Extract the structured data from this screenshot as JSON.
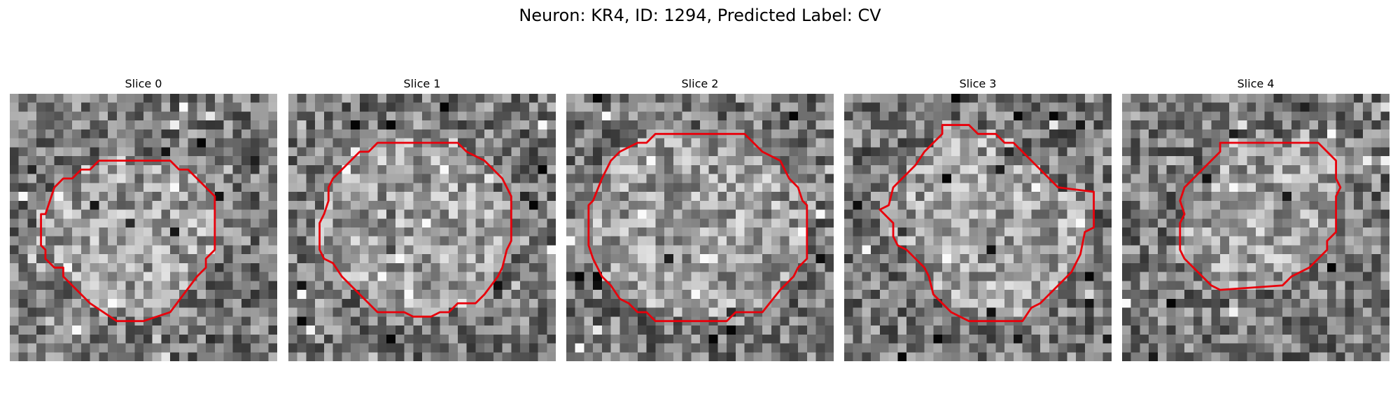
{
  "figure": {
    "suptitle": "Neuron: KR4, ID: 1294, Predicted Label: CV",
    "grid_cells": 30,
    "contour_color": "#e8000b",
    "colormap": "gray"
  },
  "panels": [
    {
      "title": "Slice 0",
      "contour": [
        [
          10,
          7.5
        ],
        [
          18,
          7.5
        ],
        [
          19,
          8.5
        ],
        [
          20,
          8.5
        ],
        [
          23,
          11.5
        ],
        [
          23,
          17.5
        ],
        [
          22,
          18.5
        ],
        [
          22,
          19.5
        ],
        [
          21,
          20.5
        ],
        [
          18,
          24.5
        ],
        [
          15,
          25.5
        ],
        [
          12,
          25.5
        ],
        [
          9,
          23.5
        ],
        [
          7,
          21.5
        ],
        [
          6,
          20.5
        ],
        [
          6,
          19.5
        ],
        [
          5,
          19.5
        ],
        [
          4,
          18.5
        ],
        [
          4,
          17.5
        ],
        [
          3.5,
          17
        ],
        [
          3.5,
          13.5
        ],
        [
          4,
          13.5
        ],
        [
          4.5,
          12
        ],
        [
          5,
          10.5
        ],
        [
          6,
          9.5
        ],
        [
          7,
          9.5
        ],
        [
          8,
          8.5
        ],
        [
          9,
          8.5
        ]
      ]
    },
    {
      "title": "Slice 1",
      "contour": [
        [
          10,
          5.5
        ],
        [
          19,
          5.5
        ],
        [
          20,
          6.5
        ],
        [
          22,
          7.5
        ],
        [
          23,
          8.5
        ],
        [
          24,
          9.5
        ],
        [
          25,
          11.5
        ],
        [
          25,
          16.5
        ],
        [
          24.5,
          17.5
        ],
        [
          24,
          19.5
        ],
        [
          23.5,
          20.5
        ],
        [
          22,
          22.5
        ],
        [
          21,
          23.5
        ],
        [
          19,
          23.5
        ],
        [
          18,
          24.5
        ],
        [
          17,
          24.5
        ],
        [
          16,
          25
        ],
        [
          14,
          25
        ],
        [
          13,
          24.5
        ],
        [
          10,
          24.5
        ],
        [
          9,
          23.5
        ],
        [
          8,
          22.5
        ],
        [
          7,
          21.5
        ],
        [
          6,
          20.5
        ],
        [
          5,
          19
        ],
        [
          4,
          18.5
        ],
        [
          3.5,
          17.5
        ],
        [
          3.5,
          14.5
        ],
        [
          4,
          13.5
        ],
        [
          4.5,
          12
        ],
        [
          4.5,
          10.5
        ],
        [
          5,
          9.5
        ],
        [
          6,
          8.5
        ],
        [
          7,
          7.5
        ],
        [
          8,
          6.5
        ],
        [
          9,
          6.5
        ]
      ]
    },
    {
      "title": "Slice 2",
      "contour": [
        [
          10,
          4.5
        ],
        [
          20,
          4.5
        ],
        [
          21,
          5.5
        ],
        [
          22,
          6.5
        ],
        [
          24,
          7.5
        ],
        [
          24.5,
          8.5
        ],
        [
          25,
          9.5
        ],
        [
          26,
          10.5
        ],
        [
          26.5,
          12
        ],
        [
          27,
          12.5
        ],
        [
          27,
          18.5
        ],
        [
          26,
          19.5
        ],
        [
          25.5,
          20.5
        ],
        [
          24,
          22
        ],
        [
          22,
          24.5
        ],
        [
          19,
          24.5
        ],
        [
          18,
          25.5
        ],
        [
          10,
          25.5
        ],
        [
          9,
          24.5
        ],
        [
          8,
          24.5
        ],
        [
          7,
          23.5
        ],
        [
          6,
          23
        ],
        [
          5,
          21.5
        ],
        [
          4,
          20.5
        ],
        [
          3.5,
          19.5
        ],
        [
          3,
          18.5
        ],
        [
          2.5,
          17
        ],
        [
          2.5,
          12.5
        ],
        [
          3,
          12
        ],
        [
          4,
          9.5
        ],
        [
          4.5,
          8.5
        ],
        [
          5,
          7.5
        ],
        [
          6,
          6.5
        ],
        [
          8,
          5.5
        ],
        [
          9,
          5.5
        ]
      ]
    },
    {
      "title": "Slice 3",
      "contour": [
        [
          11,
          3.5
        ],
        [
          14,
          3.5
        ],
        [
          15,
          4.5
        ],
        [
          17,
          4.5
        ],
        [
          18,
          5.5
        ],
        [
          19,
          5.5
        ],
        [
          20,
          6.5
        ],
        [
          21,
          7.5
        ],
        [
          22,
          8.5
        ],
        [
          23,
          9.5
        ],
        [
          24,
          10.5
        ],
        [
          28,
          11
        ],
        [
          28,
          15
        ],
        [
          27,
          15.5
        ],
        [
          26.5,
          18
        ],
        [
          25.5,
          20
        ],
        [
          24,
          21.5
        ],
        [
          22,
          23.5
        ],
        [
          21,
          24
        ],
        [
          20,
          25.5
        ],
        [
          14,
          25.5
        ],
        [
          12,
          24.5
        ],
        [
          11,
          23.5
        ],
        [
          10,
          22.5
        ],
        [
          9.5,
          20.5
        ],
        [
          9,
          19.5
        ],
        [
          8.5,
          19
        ],
        [
          8,
          18.5
        ],
        [
          7,
          17.5
        ],
        [
          6,
          17
        ],
        [
          5.5,
          16
        ],
        [
          5.5,
          14.5
        ],
        [
          4,
          13
        ],
        [
          5,
          12.5
        ],
        [
          5.5,
          10.5
        ],
        [
          7,
          9
        ],
        [
          8,
          8
        ],
        [
          9,
          6.5
        ],
        [
          10,
          5.5
        ],
        [
          11,
          4.5
        ]
      ]
    },
    {
      "title": "Slice 4",
      "contour": [
        [
          11,
          5.5
        ],
        [
          22,
          5.5
        ],
        [
          23,
          6.5
        ],
        [
          24,
          7.5
        ],
        [
          24,
          9.5
        ],
        [
          24.5,
          10.5
        ],
        [
          24,
          11.5
        ],
        [
          24,
          15.5
        ],
        [
          23,
          16.5
        ],
        [
          23,
          17.5
        ],
        [
          22,
          18.5
        ],
        [
          21,
          19.5
        ],
        [
          19,
          20.5
        ],
        [
          18,
          21.5
        ],
        [
          11,
          22
        ],
        [
          10,
          21.5
        ],
        [
          9,
          20.5
        ],
        [
          8,
          19.5
        ],
        [
          7,
          18.5
        ],
        [
          6.5,
          17.5
        ],
        [
          6.5,
          14.5
        ],
        [
          7,
          13.5
        ],
        [
          6.5,
          12
        ],
        [
          7,
          10.5
        ],
        [
          8,
          9.5
        ],
        [
          9,
          8.5
        ],
        [
          10,
          7.5
        ],
        [
          11,
          6.5
        ]
      ]
    }
  ]
}
